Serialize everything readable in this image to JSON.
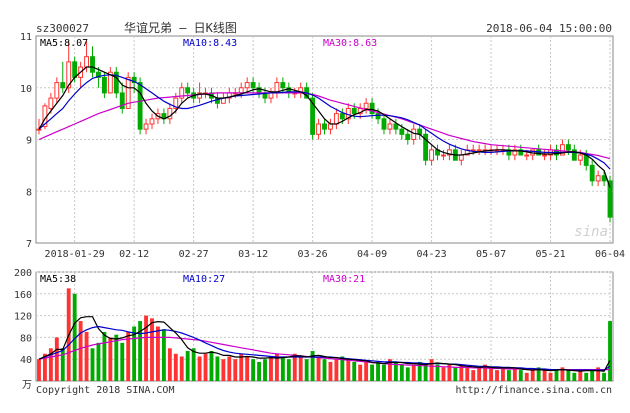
{
  "header": {
    "code": "sz300027",
    "name": "华谊兄弟 — 日K线图",
    "datetime": "2018-06-04 15:00:00"
  },
  "colors": {
    "up": "#ff3333",
    "down": "#00aa00",
    "ma5": "#000000",
    "ma10": "#0000cc",
    "ma30": "#cc00cc",
    "grid": "#c8c8c8",
    "frame": "#888888",
    "axis_text": "#333333"
  },
  "watermark": "sina",
  "copyright": "Copyright 2018 SINA.COM",
  "source_url": "http://finance.sina.com.cn",
  "chart_data": [
    {
      "type": "candlestick",
      "legend": [
        {
          "label": "MA5:8.07",
          "color": "#000000"
        },
        {
          "label": "MA10:8.43",
          "color": "#0000cc"
        },
        {
          "label": "MA30:8.63",
          "color": "#cc00cc"
        }
      ],
      "ylim": [
        7,
        11
      ],
      "yticks": [
        7,
        8,
        9,
        10,
        11
      ],
      "xtick_labels": [
        "2018-01-29",
        "02-12",
        "02-27",
        "03-12",
        "03-26",
        "04-09",
        "04-23",
        "05-07",
        "05-21",
        "06-04"
      ],
      "xtick_index": [
        6,
        16,
        26,
        36,
        46,
        56,
        66,
        76,
        86,
        96
      ],
      "candles": [
        [
          9.2,
          9.4,
          9.1,
          9.2
        ],
        [
          9.25,
          9.7,
          9.2,
          9.65
        ],
        [
          9.6,
          9.9,
          9.5,
          9.8
        ],
        [
          9.8,
          10.2,
          9.7,
          10.1
        ],
        [
          10.1,
          10.5,
          9.9,
          10.0
        ],
        [
          10.0,
          10.9,
          9.9,
          10.5
        ],
        [
          10.5,
          10.6,
          10.1,
          10.2
        ],
        [
          10.2,
          10.5,
          10.0,
          10.4
        ],
        [
          10.4,
          10.9,
          10.3,
          10.6
        ],
        [
          10.6,
          10.8,
          10.2,
          10.3
        ],
        [
          10.3,
          10.4,
          10.0,
          10.2
        ],
        [
          10.2,
          10.3,
          9.8,
          9.9
        ],
        [
          9.9,
          10.4,
          9.9,
          10.3
        ],
        [
          10.3,
          10.4,
          9.8,
          9.9
        ],
        [
          9.9,
          10.1,
          9.5,
          9.6
        ],
        [
          9.6,
          10.3,
          9.6,
          10.2
        ],
        [
          10.2,
          10.3,
          9.9,
          10.1
        ],
        [
          10.1,
          10.2,
          9.1,
          9.2
        ],
        [
          9.2,
          9.4,
          9.1,
          9.3
        ],
        [
          9.3,
          9.5,
          9.2,
          9.4
        ],
        [
          9.4,
          9.6,
          9.3,
          9.5
        ],
        [
          9.5,
          9.6,
          9.3,
          9.4
        ],
        [
          9.4,
          9.7,
          9.3,
          9.6
        ],
        [
          9.6,
          9.9,
          9.5,
          9.8
        ],
        [
          9.8,
          10.1,
          9.7,
          10.0
        ],
        [
          10.0,
          10.1,
          9.8,
          9.9
        ],
        [
          9.9,
          10.0,
          9.7,
          9.8
        ],
        [
          9.8,
          10.1,
          9.7,
          9.9
        ],
        [
          9.9,
          10.0,
          9.8,
          9.9
        ],
        [
          9.9,
          10.0,
          9.7,
          9.8
        ],
        [
          9.8,
          9.9,
          9.6,
          9.7
        ],
        [
          9.7,
          9.9,
          9.7,
          9.8
        ],
        [
          9.8,
          10.0,
          9.7,
          9.9
        ],
        [
          9.9,
          10.0,
          9.8,
          9.9
        ],
        [
          9.9,
          10.1,
          9.8,
          10.0
        ],
        [
          10.0,
          10.2,
          9.9,
          10.1
        ],
        [
          10.1,
          10.2,
          9.9,
          10.0
        ],
        [
          10.0,
          10.1,
          9.8,
          9.9
        ],
        [
          9.9,
          10.0,
          9.7,
          9.8
        ],
        [
          9.8,
          10.0,
          9.7,
          9.9
        ],
        [
          9.9,
          10.2,
          9.8,
          10.1
        ],
        [
          10.1,
          10.2,
          9.9,
          10.0
        ],
        [
          10.0,
          10.1,
          9.8,
          9.9
        ],
        [
          9.9,
          10.0,
          9.8,
          9.9
        ],
        [
          9.9,
          10.1,
          9.8,
          10.0
        ],
        [
          10.0,
          10.1,
          9.8,
          9.8
        ],
        [
          9.8,
          9.9,
          9.0,
          9.1
        ],
        [
          9.1,
          9.4,
          9.0,
          9.3
        ],
        [
          9.3,
          9.4,
          9.1,
          9.2
        ],
        [
          9.2,
          9.4,
          9.1,
          9.3
        ],
        [
          9.3,
          9.6,
          9.2,
          9.5
        ],
        [
          9.5,
          9.6,
          9.3,
          9.4
        ],
        [
          9.4,
          9.7,
          9.3,
          9.6
        ],
        [
          9.6,
          9.7,
          9.4,
          9.5
        ],
        [
          9.5,
          9.7,
          9.4,
          9.6
        ],
        [
          9.6,
          9.8,
          9.5,
          9.7
        ],
        [
          9.7,
          9.8,
          9.4,
          9.5
        ],
        [
          9.5,
          9.6,
          9.3,
          9.4
        ],
        [
          9.4,
          9.5,
          9.1,
          9.2
        ],
        [
          9.2,
          9.4,
          9.1,
          9.3
        ],
        [
          9.3,
          9.4,
          9.1,
          9.2
        ],
        [
          9.2,
          9.3,
          9.0,
          9.1
        ],
        [
          9.1,
          9.2,
          8.9,
          9.0
        ],
        [
          9.0,
          9.3,
          8.9,
          9.2
        ],
        [
          9.2,
          9.3,
          9.0,
          9.1
        ],
        [
          9.1,
          9.2,
          8.5,
          8.6
        ],
        [
          8.6,
          8.9,
          8.5,
          8.8
        ],
        [
          8.8,
          8.9,
          8.6,
          8.7
        ],
        [
          8.7,
          8.8,
          8.6,
          8.7
        ],
        [
          8.7,
          8.9,
          8.6,
          8.8
        ],
        [
          8.8,
          8.9,
          8.6,
          8.6
        ],
        [
          8.6,
          8.8,
          8.5,
          8.7
        ],
        [
          8.7,
          8.9,
          8.7,
          8.8
        ],
        [
          8.8,
          8.9,
          8.7,
          8.8
        ],
        [
          8.8,
          8.9,
          8.7,
          8.8
        ],
        [
          8.8,
          8.9,
          8.7,
          8.8
        ],
        [
          8.8,
          8.9,
          8.7,
          8.8
        ],
        [
          8.8,
          8.9,
          8.7,
          8.8
        ],
        [
          8.8,
          8.9,
          8.7,
          8.8
        ],
        [
          8.8,
          8.9,
          8.6,
          8.7
        ],
        [
          8.7,
          8.9,
          8.6,
          8.8
        ],
        [
          8.8,
          8.9,
          8.7,
          8.7
        ],
        [
          8.7,
          8.8,
          8.6,
          8.7
        ],
        [
          8.7,
          8.8,
          8.6,
          8.8
        ],
        [
          8.8,
          8.9,
          8.7,
          8.7
        ],
        [
          8.7,
          8.8,
          8.6,
          8.7
        ],
        [
          8.7,
          8.9,
          8.6,
          8.8
        ],
        [
          8.8,
          8.9,
          8.6,
          8.7
        ],
        [
          8.7,
          9.0,
          8.7,
          8.9
        ],
        [
          8.9,
          9.0,
          8.7,
          8.8
        ],
        [
          8.8,
          8.9,
          8.6,
          8.6
        ],
        [
          8.6,
          8.8,
          8.5,
          8.7
        ],
        [
          8.7,
          8.8,
          8.4,
          8.5
        ],
        [
          8.5,
          8.6,
          8.1,
          8.2
        ],
        [
          8.2,
          8.4,
          8.1,
          8.3
        ],
        [
          8.3,
          8.4,
          8.1,
          8.2
        ],
        [
          8.2,
          8.3,
          7.4,
          7.5
        ]
      ],
      "ma5": [
        9.2,
        9.4,
        9.55,
        9.7,
        9.85,
        10.05,
        10.2,
        10.3,
        10.4,
        10.4,
        10.35,
        10.3,
        10.25,
        10.2,
        10.05,
        10.0,
        10.0,
        9.9,
        9.7,
        9.55,
        9.45,
        9.4,
        9.45,
        9.55,
        9.7,
        9.8,
        9.85,
        9.88,
        9.88,
        9.85,
        9.8,
        9.8,
        9.82,
        9.85,
        9.88,
        9.92,
        9.96,
        9.98,
        9.95,
        9.92,
        9.92,
        9.95,
        9.98,
        9.95,
        9.92,
        9.85,
        9.7,
        9.55,
        9.4,
        9.3,
        9.3,
        9.35,
        9.42,
        9.48,
        9.52,
        9.58,
        9.58,
        9.55,
        9.48,
        9.4,
        9.32,
        9.25,
        9.18,
        9.12,
        9.1,
        9.0,
        8.9,
        8.8,
        8.75,
        8.72,
        8.7,
        8.7,
        8.72,
        8.74,
        8.76,
        8.78,
        8.79,
        8.8,
        8.8,
        8.79,
        8.78,
        8.78,
        8.76,
        8.74,
        8.73,
        8.72,
        8.72,
        8.73,
        8.74,
        8.76,
        8.76,
        8.74,
        8.7,
        8.62,
        8.5,
        8.4,
        8.07
      ],
      "ma10": [
        9.2,
        9.3,
        9.4,
        9.5,
        9.6,
        9.75,
        9.88,
        10.0,
        10.1,
        10.18,
        10.22,
        10.24,
        10.25,
        10.24,
        10.2,
        10.16,
        10.12,
        10.06,
        9.98,
        9.9,
        9.82,
        9.74,
        9.68,
        9.63,
        9.6,
        9.6,
        9.63,
        9.66,
        9.7,
        9.74,
        9.77,
        9.8,
        9.82,
        9.84,
        9.85,
        9.86,
        9.87,
        9.88,
        9.89,
        9.9,
        9.9,
        9.91,
        9.92,
        9.92,
        9.92,
        9.9,
        9.86,
        9.8,
        9.72,
        9.64,
        9.58,
        9.52,
        9.48,
        9.45,
        9.44,
        9.45,
        9.46,
        9.47,
        9.47,
        9.46,
        9.44,
        9.42,
        9.38,
        9.33,
        9.28,
        9.2,
        9.12,
        9.04,
        8.97,
        8.91,
        8.86,
        8.82,
        8.79,
        8.77,
        8.76,
        8.75,
        8.75,
        8.76,
        8.77,
        8.78,
        8.78,
        8.78,
        8.78,
        8.77,
        8.76,
        8.75,
        8.75,
        8.75,
        8.75,
        8.75,
        8.75,
        8.74,
        8.72,
        8.68,
        8.62,
        8.55,
        8.43
      ],
      "ma30": [
        9.0,
        9.05,
        9.1,
        9.15,
        9.2,
        9.25,
        9.3,
        9.35,
        9.4,
        9.45,
        9.5,
        9.54,
        9.58,
        9.62,
        9.66,
        9.7,
        9.72,
        9.74,
        9.76,
        9.78,
        9.8,
        9.81,
        9.82,
        9.83,
        9.84,
        9.85,
        9.86,
        9.87,
        9.88,
        9.89,
        9.9,
        9.9,
        9.9,
        9.9,
        9.9,
        9.9,
        9.9,
        9.9,
        9.9,
        9.9,
        9.9,
        9.9,
        9.9,
        9.9,
        9.9,
        9.89,
        9.87,
        9.84,
        9.8,
        9.76,
        9.73,
        9.7,
        9.67,
        9.64,
        9.61,
        9.58,
        9.55,
        9.52,
        9.49,
        9.46,
        9.43,
        9.4,
        9.36,
        9.32,
        9.28,
        9.24,
        9.2,
        9.16,
        9.12,
        9.08,
        9.05,
        9.02,
        8.99,
        8.96,
        8.94,
        8.92,
        8.9,
        8.89,
        8.88,
        8.87,
        8.86,
        8.85,
        8.84,
        8.83,
        8.82,
        8.81,
        8.8,
        8.79,
        8.78,
        8.77,
        8.76,
        8.75,
        8.73,
        8.71,
        8.69,
        8.66,
        8.63
      ]
    },
    {
      "type": "bar",
      "legend": [
        {
          "label": "MA5:38",
          "color": "#000000"
        },
        {
          "label": "MA10:27",
          "color": "#0000cc"
        },
        {
          "label": "MA30:21",
          "color": "#cc00cc"
        }
      ],
      "ylim": [
        0,
        200
      ],
      "ytick_labels": [
        "200",
        "160",
        "120",
        "80",
        "40"
      ],
      "yticks": [
        200,
        160,
        120,
        80,
        40
      ],
      "unit_label": "万",
      "values": [
        40,
        50,
        60,
        80,
        60,
        170,
        160,
        110,
        90,
        60,
        70,
        90,
        80,
        85,
        70,
        90,
        100,
        110,
        120,
        115,
        100,
        95,
        60,
        50,
        45,
        55,
        60,
        45,
        50,
        55,
        45,
        40,
        45,
        40,
        50,
        45,
        40,
        35,
        40,
        45,
        50,
        45,
        40,
        50,
        45,
        40,
        55,
        45,
        40,
        35,
        40,
        45,
        40,
        35,
        30,
        35,
        30,
        35,
        30,
        40,
        35,
        30,
        25,
        30,
        35,
        30,
        40,
        30,
        25,
        30,
        25,
        30,
        25,
        20,
        25,
        30,
        25,
        20,
        25,
        20,
        25,
        20,
        15,
        20,
        25,
        20,
        15,
        20,
        25,
        20,
        15,
        20,
        15,
        20,
        25,
        15,
        110
      ],
      "ma5": [
        40,
        45,
        50,
        58,
        58,
        84,
        106,
        116,
        118,
        118,
        96,
        84,
        78,
        77,
        79,
        83,
        85,
        91,
        98,
        107,
        109,
        108,
        98,
        88,
        76,
        61,
        54,
        51,
        51,
        53,
        51,
        47,
        47,
        44,
        44,
        45,
        44,
        42,
        42,
        43,
        42,
        43,
        44,
        46,
        46,
        44,
        46,
        47,
        45,
        43,
        43,
        41,
        40,
        39,
        38,
        37,
        34,
        33,
        32,
        34,
        34,
        34,
        32,
        32,
        31,
        30,
        32,
        33,
        32,
        31,
        30,
        28,
        27,
        26,
        25,
        26,
        25,
        24,
        24,
        24,
        24,
        22,
        21,
        20,
        21,
        20,
        19,
        20,
        21,
        20,
        19,
        18,
        19,
        19,
        19,
        18,
        38
      ],
      "ma10": [
        40,
        44,
        48,
        52,
        56,
        66,
        78,
        88,
        94,
        98,
        100,
        98,
        96,
        94,
        93,
        90,
        88,
        87,
        88,
        90,
        92,
        94,
        93,
        91,
        88,
        84,
        80,
        75,
        70,
        65,
        60,
        56,
        53,
        51,
        50,
        49,
        48,
        47,
        46,
        45,
        44,
        44,
        44,
        44,
        44,
        44,
        44,
        44,
        44,
        44,
        43,
        42,
        41,
        40,
        39,
        38,
        37,
        36,
        35,
        35,
        35,
        34,
        34,
        33,
        33,
        32,
        32,
        32,
        32,
        31,
        31,
        30,
        29,
        28,
        27,
        27,
        26,
        26,
        25,
        25,
        24,
        24,
        23,
        23,
        22,
        22,
        21,
        21,
        21,
        20,
        20,
        20,
        20,
        20,
        20,
        20,
        27
      ],
      "ma30": [
        40,
        42,
        44,
        46,
        48,
        52,
        56,
        60,
        63,
        66,
        68,
        70,
        72,
        74,
        76,
        77,
        78,
        79,
        80,
        80,
        80,
        80,
        80,
        79,
        78,
        77,
        76,
        75,
        73,
        71,
        69,
        67,
        65,
        63,
        61,
        59,
        57,
        55,
        53,
        51,
        50,
        49,
        48,
        47,
        46,
        45,
        44,
        43,
        42,
        41,
        40,
        39,
        38,
        37,
        36,
        35,
        34,
        33,
        32,
        31,
        30,
        30,
        29,
        29,
        28,
        28,
        27,
        27,
        26,
        26,
        25,
        25,
        25,
        24,
        24,
        24,
        23,
        23,
        23,
        22,
        22,
        22,
        22,
        21,
        21,
        21,
        21,
        21,
        21,
        21,
        21,
        21,
        21,
        21,
        21,
        21,
        21
      ]
    }
  ]
}
